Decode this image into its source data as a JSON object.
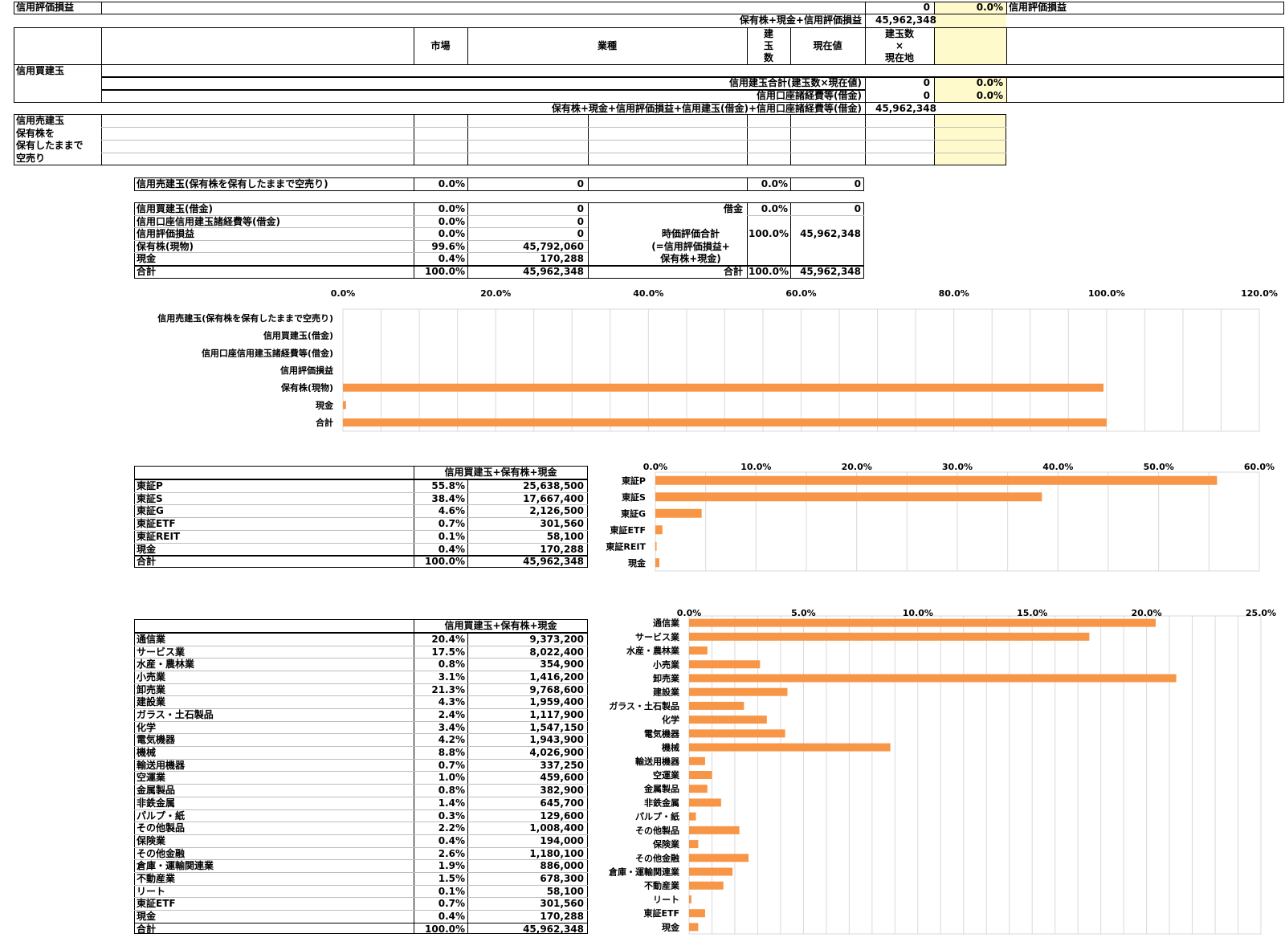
{
  "top": {
    "label_eval": "信用評価損益",
    "eval_value": "0",
    "eval_pct": "0.0%",
    "eval_right_label": "信用評価損益",
    "sum_label": "保有株+現金+信用評価損益",
    "sum_value": "45,962,348",
    "col_market": "市場",
    "col_sector": "業種",
    "col_count": "建\n玉\n数",
    "col_price": "現在値",
    "col_count_x_price": "建玉数\n×\n現在地",
    "buy_label": "信用買建玉",
    "buy_total_label": "信用建玉合計(建玉数×現在値)",
    "buy_total_value": "0",
    "buy_total_pct": "0.0%",
    "fees_label": "信用口座諸経費等(借金)",
    "fees_value": "0",
    "fees_pct": "0.0%",
    "grand_label": "保有株+現金+信用評価損益+信用建玉(借金)+信用口座諸経費等(借金)",
    "grand_value": "45,962,348",
    "sell_label": "信用売建玉\n保有株を\n保有したままで\n空売り"
  },
  "short": {
    "label": "信用売建玉(保有株を保有したままで空売り)",
    "pct": "0.0%",
    "value": "0",
    "pct2": "0.0%",
    "value2": "0"
  },
  "summary": {
    "rows": [
      {
        "label": "信用買建玉(借金)",
        "pct": "0.0%",
        "value": "0"
      },
      {
        "label": "信用口座信用建玉諸経費等(借金)",
        "pct": "0.0%",
        "value": "0"
      },
      {
        "label": "信用評価損益",
        "pct": "0.0%",
        "value": "0"
      },
      {
        "label": "保有株(現物)",
        "pct": "99.6%",
        "value": "45,792,060"
      },
      {
        "label": "現金",
        "pct": "0.4%",
        "value": "170,288"
      },
      {
        "label": "合計",
        "pct": "100.0%",
        "value": "45,962,348"
      }
    ],
    "debt_label": "借金",
    "debt_pct": "0.0%",
    "debt_value": "0",
    "mv_label": "時価評価合計\n(=信用評価損益+\n保有株+現金)",
    "mv_pct": "100.0%",
    "mv_value": "45,962,348",
    "total_label": "合計",
    "total_pct": "100.0%",
    "total_value": "45,962,348"
  },
  "market": {
    "header": "信用買建玉+保有株+現金",
    "rows": [
      {
        "label": "東証P",
        "pct": "55.8%",
        "value": "25,638,500"
      },
      {
        "label": "東証S",
        "pct": "38.4%",
        "value": "17,667,400"
      },
      {
        "label": "東証G",
        "pct": "4.6%",
        "value": "2,126,500"
      },
      {
        "label": "東証ETF",
        "pct": "0.7%",
        "value": "301,560"
      },
      {
        "label": "東証REIT",
        "pct": "0.1%",
        "value": "58,100"
      },
      {
        "label": "現金",
        "pct": "0.4%",
        "value": "170,288"
      },
      {
        "label": "合計",
        "pct": "100.0%",
        "value": "45,962,348"
      }
    ]
  },
  "sector": {
    "header": "信用買建玉+保有株+現金",
    "rows": [
      {
        "label": "通信業",
        "pct": "20.4%",
        "value": "9,373,200"
      },
      {
        "label": "サービス業",
        "pct": "17.5%",
        "value": "8,022,400"
      },
      {
        "label": "水産・農林業",
        "pct": "0.8%",
        "value": "354,900"
      },
      {
        "label": "小売業",
        "pct": "3.1%",
        "value": "1,416,200"
      },
      {
        "label": "卸売業",
        "pct": "21.3%",
        "value": "9,768,600"
      },
      {
        "label": "建設業",
        "pct": "4.3%",
        "value": "1,959,400"
      },
      {
        "label": "ガラス・土石製品",
        "pct": "2.4%",
        "value": "1,117,900"
      },
      {
        "label": "化学",
        "pct": "3.4%",
        "value": "1,547,150"
      },
      {
        "label": "電気機器",
        "pct": "4.2%",
        "value": "1,943,900"
      },
      {
        "label": "機械",
        "pct": "8.8%",
        "value": "4,026,900"
      },
      {
        "label": "輸送用機器",
        "pct": "0.7%",
        "value": "337,250"
      },
      {
        "label": "空運業",
        "pct": "1.0%",
        "value": "459,600"
      },
      {
        "label": "金属製品",
        "pct": "0.8%",
        "value": "382,900"
      },
      {
        "label": "非鉄金属",
        "pct": "1.4%",
        "value": "645,700"
      },
      {
        "label": "パルプ・紙",
        "pct": "0.3%",
        "value": "129,600"
      },
      {
        "label": "その他製品",
        "pct": "2.2%",
        "value": "1,008,400"
      },
      {
        "label": "保険業",
        "pct": "0.4%",
        "value": "194,000"
      },
      {
        "label": "その他金融",
        "pct": "2.6%",
        "value": "1,180,100"
      },
      {
        "label": "倉庫・運輸関連業",
        "pct": "1.9%",
        "value": "886,000"
      },
      {
        "label": "不動産業",
        "pct": "1.5%",
        "value": "678,300"
      },
      {
        "label": "リート",
        "pct": "0.1%",
        "value": "58,100"
      },
      {
        "label": "東証ETF",
        "pct": "0.7%",
        "value": "301,560"
      },
      {
        "label": "現金",
        "pct": "0.4%",
        "value": "170,288"
      },
      {
        "label": "合計",
        "pct": "100.0%",
        "value": "45,962,348"
      }
    ]
  },
  "colors": {
    "bar": "#f79646",
    "highlight": "#fffacc",
    "grid": "#d9d9d9"
  },
  "chart_data": [
    {
      "type": "bar",
      "orientation": "horizontal",
      "categories": [
        "信用売建玉(保有株を保有したままで空売り)",
        "信用買建玉(借金)",
        "信用口座信用建玉諸経費等(借金)",
        "信用評価損益",
        "保有株(現物)",
        "現金",
        "合計"
      ],
      "values": [
        0,
        0,
        0,
        0,
        99.6,
        0.4,
        100.0
      ],
      "tick_labels": [
        "0.0%",
        "20.0%",
        "40.0%",
        "60.0%",
        "80.0%",
        "100.0%",
        "120.0%"
      ],
      "xlim": [
        0,
        120
      ],
      "grid": true
    },
    {
      "type": "bar",
      "orientation": "horizontal",
      "categories": [
        "東証P",
        "東証S",
        "東証G",
        "東証ETF",
        "東証REIT",
        "現金"
      ],
      "values": [
        55.8,
        38.4,
        4.6,
        0.7,
        0.1,
        0.4
      ],
      "tick_labels": [
        "0.0%",
        "10.0%",
        "20.0%",
        "30.0%",
        "40.0%",
        "50.0%",
        "60.0%"
      ],
      "xlim": [
        0,
        60
      ],
      "grid": true
    },
    {
      "type": "bar",
      "orientation": "horizontal",
      "categories": [
        "通信業",
        "サービス業",
        "水産・農林業",
        "小売業",
        "卸売業",
        "建設業",
        "ガラス・土石製品",
        "化学",
        "電気機器",
        "機械",
        "輸送用機器",
        "空運業",
        "金属製品",
        "非鉄金属",
        "パルプ・紙",
        "その他製品",
        "保険業",
        "その他金融",
        "倉庫・運輸関連業",
        "不動産業",
        "リート",
        "東証ETF",
        "現金"
      ],
      "values": [
        20.4,
        17.5,
        0.8,
        3.1,
        21.3,
        4.3,
        2.4,
        3.4,
        4.2,
        8.8,
        0.7,
        1.0,
        0.8,
        1.4,
        0.3,
        2.2,
        0.4,
        2.6,
        1.9,
        1.5,
        0.1,
        0.7,
        0.4
      ],
      "tick_labels": [
        "0.0%",
        "5.0%",
        "10.0%",
        "15.0%",
        "20.0%",
        "25.0%"
      ],
      "xlim": [
        0,
        25
      ],
      "grid": true
    }
  ]
}
